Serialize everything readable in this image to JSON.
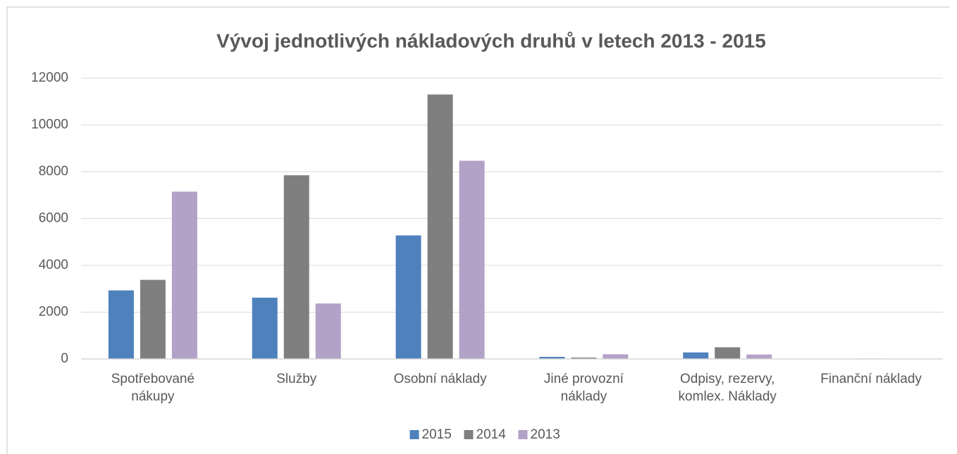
{
  "chart_data": {
    "type": "bar",
    "title": "Vývoj jednotlivých nákladových druhů v letech 2013 - 2015",
    "categories": [
      "Spotřebované nákupy",
      "Služby",
      "Osobní náklady",
      "Jiné provozní náklady",
      "Odpisy, rezervy, komlex. Náklady",
      "Finanční náklady"
    ],
    "series": [
      {
        "name": "2015",
        "color": "#4f81bd",
        "values": [
          2930,
          2620,
          5280,
          90,
          280,
          10
        ]
      },
      {
        "name": "2014",
        "color": "#7f7f7f",
        "values": [
          3380,
          7850,
          11300,
          60,
          500,
          20
        ]
      },
      {
        "name": "2013",
        "color": "#b3a2c7",
        "values": [
          7150,
          2370,
          8470,
          200,
          190,
          15
        ]
      }
    ],
    "ylim": [
      0,
      12000
    ],
    "yticks": [
      0,
      2000,
      4000,
      6000,
      8000,
      10000,
      12000
    ],
    "grid": true,
    "legend": "bottom"
  }
}
